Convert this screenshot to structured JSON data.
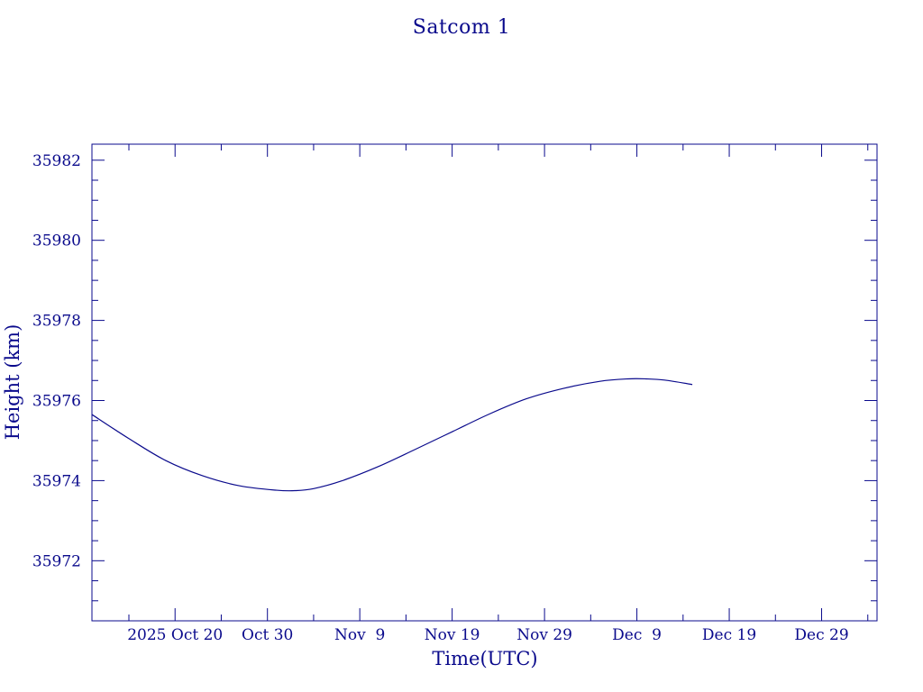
{
  "chart_data": {
    "type": "line",
    "title": "Satcom 1",
    "xlabel": "Time(UTC)",
    "ylabel": "Height (km)",
    "x_unit": "date",
    "xlim": [
      "2025-10-11",
      "2026-01-04"
    ],
    "ylim": [
      35970.5,
      35982.4
    ],
    "x_ticks": [
      {
        "date": "2025-10-20",
        "label": "2025 Oct 20"
      },
      {
        "date": "2025-10-30",
        "label": "Oct 30"
      },
      {
        "date": "2025-11-09",
        "label": "Nov  9"
      },
      {
        "date": "2025-11-19",
        "label": "Nov 19"
      },
      {
        "date": "2025-11-29",
        "label": "Nov 29"
      },
      {
        "date": "2025-12-09",
        "label": "Dec  9"
      },
      {
        "date": "2025-12-19",
        "label": "Dec 19"
      },
      {
        "date": "2025-12-29",
        "label": "Dec 29"
      }
    ],
    "y_ticks": [
      35972,
      35974,
      35976,
      35978,
      35980,
      35982
    ],
    "y_minor_step": 0.5,
    "x_minor_step_days": 5,
    "grid": false,
    "series": [
      {
        "color": "#0a0a8c",
        "x": [
          "2025-10-11",
          "2025-10-15",
          "2025-10-19",
          "2025-10-23",
          "2025-10-27",
          "2025-10-31",
          "2025-11-02",
          "2025-11-04",
          "2025-11-07",
          "2025-11-11",
          "2025-11-15",
          "2025-11-19",
          "2025-11-23",
          "2025-11-27",
          "2025-12-01",
          "2025-12-05",
          "2025-12-08",
          "2025-12-10",
          "2025-12-12",
          "2025-12-15"
        ],
        "y": [
          35975.65,
          35975.05,
          35974.5,
          35974.12,
          35973.87,
          35973.76,
          35973.75,
          35973.8,
          35973.99,
          35974.35,
          35974.78,
          35975.22,
          35975.66,
          35976.04,
          35976.3,
          35976.48,
          35976.54,
          35976.54,
          35976.51,
          35976.4
        ]
      }
    ]
  }
}
